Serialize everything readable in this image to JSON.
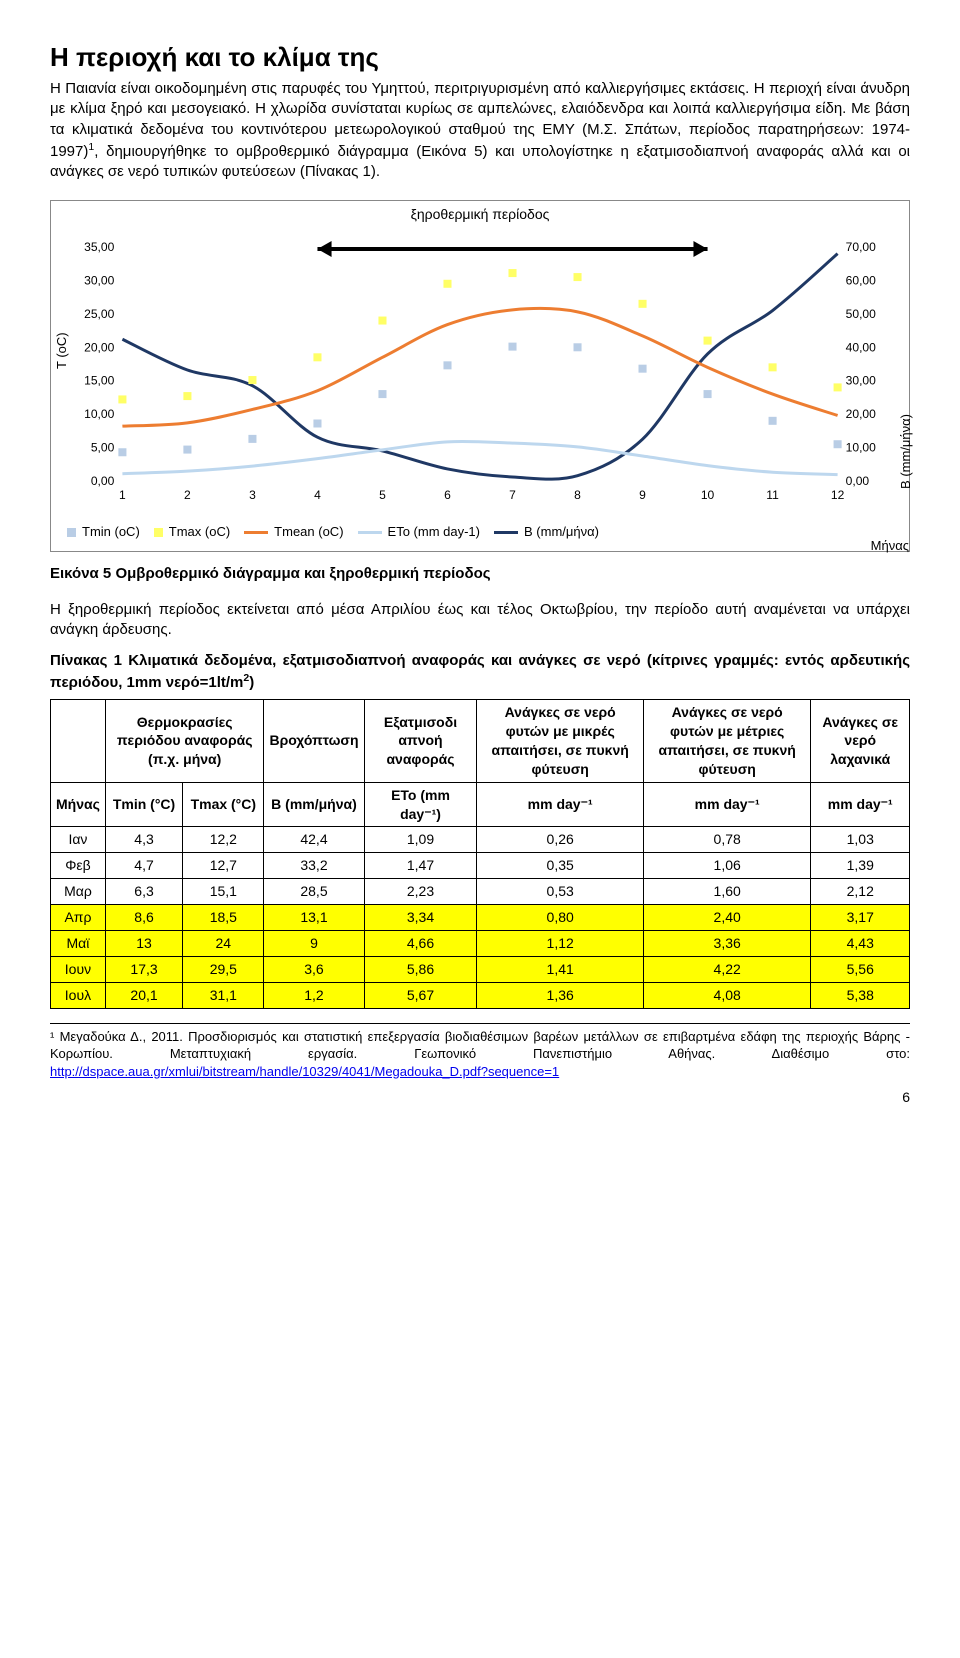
{
  "heading": "Η περιοχή και το κλίμα της",
  "intro": "Η Παιανία είναι οικοδομημένη στις παρυφές του Υμηττού, περιτριγυρισμένη από καλλιεργήσιμες εκτάσεις. Η περιοχή είναι άνυδρη με κλίμα ξηρό και μεσογειακό. Η χλωρίδα συνίσταται κυρίως σε αμπελώνες, ελαιόδενδρα και λοιπά καλλιεργήσιμα είδη. Με βάση τα κλιματικά δεδομένα του κοντινότερου μετεωρολογικού σταθμού της ΕΜΥ (Μ.Σ. Σπάτων, περίοδος παρατηρήσεων: 1974-1997)",
  "intro_cont": ", δημιουργήθηκε το ομβροθερμικό διάγραμμα (Εικόνα 5) και υπολογίστηκε η εξατμισοδιαπνοή αναφοράς αλλά και οι ανάγκες σε νερό τυπικών φυτεύσεων (Πίνακας 1).",
  "chart": {
    "period_label": "ξηροθερμική περίοδος",
    "y_left_label": "Τ (oC)",
    "y_right_label": "Β (mm/μήνα)",
    "x_axis_label": "Μήνας",
    "y_left_ticks": [
      "0,00",
      "5,00",
      "10,00",
      "15,00",
      "20,00",
      "25,00",
      "30,00",
      "35,00"
    ],
    "y_right_ticks": [
      "0,00",
      "10,00",
      "20,00",
      "30,00",
      "40,00",
      "50,00",
      "60,00",
      "70,00"
    ],
    "x_ticks": [
      "1",
      "2",
      "3",
      "4",
      "5",
      "6",
      "7",
      "8",
      "9",
      "10",
      "11",
      "12"
    ],
    "legend": {
      "tmin": {
        "label": "Tmin (oC)",
        "color": "#b9cde5"
      },
      "tmax": {
        "label": "Tmax (oC)",
        "color": "#ffff66"
      },
      "tmean": {
        "label": "Tmean (oC)",
        "color": "#ed7d31"
      },
      "eto": {
        "label": "ETo (mm day-1)",
        "color": "#bdd7ee"
      },
      "b": {
        "label": "Β (mm/μήνα)",
        "color": "#1f3864"
      }
    },
    "series": {
      "tmean": [
        8.2,
        8.7,
        10.7,
        13.5,
        18.5,
        23.4,
        25.6,
        25.3,
        21.7,
        17.0,
        13.0,
        9.8
      ],
      "eto": [
        1.09,
        1.47,
        2.23,
        3.34,
        4.66,
        5.86,
        5.67,
        5.1,
        3.74,
        2.3,
        1.31,
        0.96
      ],
      "b": [
        42.4,
        33.2,
        28.5,
        13.1,
        9.0,
        3.6,
        1.2,
        1.6,
        12.5,
        38.0,
        51.0,
        68.0
      ]
    },
    "scatter": {
      "tmin": [
        4.3,
        4.7,
        6.3,
        8.6,
        13.0,
        17.3,
        20.1,
        20.0,
        16.8,
        13.0,
        9.0,
        5.5
      ],
      "tmax": [
        12.2,
        12.7,
        15.1,
        18.5,
        24.0,
        29.5,
        31.1,
        30.5,
        26.5,
        21.0,
        17.0,
        14.0
      ]
    },
    "y_left_max": 35,
    "y_right_max": 70
  },
  "fig_caption": "Εικόνα 5 Ομβροθερμικό διάγραμμα και ξηροθερμική περίοδος",
  "mid_para": "Η ξηροθερμική περίοδος εκτείνεται από μέσα Απριλίου έως και τέλος Οκτωβρίου, την περίοδο αυτή αναμένεται να υπάρχει ανάγκη άρδευσης.",
  "table_caption_a": "Πίνακας 1 Κλιματικά δεδομένα, εξατμισοδιαπνοή αναφοράς και ανάγκες σε νερό (κίτρινες γραμμές: εντός αρδευτικής περιόδου, 1mm νερό=1lt/m",
  "table_caption_b": ")",
  "table": {
    "head1": [
      "",
      "Θερμοκρασίες περιόδου αναφοράς (π.χ. μήνα)",
      "Βροχόπτωση",
      "Εξατμισοδι απνοή αναφοράς",
      "Ανάγκες σε νερό φυτών με μικρές απαιτήσει, σε πυκνή φύτευση",
      "Ανάγκες σε νερό φυτών με μέτριες απαιτήσει, σε πυκνή φύτευση",
      "Ανάγκες σε νερό λαχανικά"
    ],
    "head2": [
      "Μήνας",
      "Tmin (°C)",
      "Tmax (°C)",
      "Β (mm/μήνα)",
      "ETo (mm day⁻¹)",
      "mm day⁻¹",
      "mm day⁻¹",
      "mm day⁻¹"
    ],
    "rows": [
      {
        "hl": false,
        "c": [
          "Ιαν",
          "4,3",
          "12,2",
          "42,4",
          "1,09",
          "0,26",
          "0,78",
          "1,03"
        ]
      },
      {
        "hl": false,
        "c": [
          "Φεβ",
          "4,7",
          "12,7",
          "33,2",
          "1,47",
          "0,35",
          "1,06",
          "1,39"
        ]
      },
      {
        "hl": false,
        "c": [
          "Μαρ",
          "6,3",
          "15,1",
          "28,5",
          "2,23",
          "0,53",
          "1,60",
          "2,12"
        ]
      },
      {
        "hl": true,
        "c": [
          "Απρ",
          "8,6",
          "18,5",
          "13,1",
          "3,34",
          "0,80",
          "2,40",
          "3,17"
        ]
      },
      {
        "hl": true,
        "c": [
          "Μαϊ",
          "13",
          "24",
          "9",
          "4,66",
          "1,12",
          "3,36",
          "4,43"
        ]
      },
      {
        "hl": true,
        "c": [
          "Ιουν",
          "17,3",
          "29,5",
          "3,6",
          "5,86",
          "1,41",
          "4,22",
          "5,56"
        ]
      },
      {
        "hl": true,
        "c": [
          "Ιουλ",
          "20,1",
          "31,1",
          "1,2",
          "5,67",
          "1,36",
          "4,08",
          "5,38"
        ]
      }
    ]
  },
  "footnote_a": "¹ Μεγαδούκα Δ., 2011. Προσδιορισμός και στατιστική επεξεργασία βιοδιαθέσιμων βαρέων μετάλλων σε επιβαρτμένα εδάφη της περιοχής Βάρης - Κορωπίου. Μεταπτυχιακή εργασία. Γεωπονικό Πανεπιστήμιο Αθήνας. Διαθέσιμο στο: ",
  "footnote_link": "http://dspace.aua.gr/xmlui/bitstream/handle/10329/4041/Megadouka_D.pdf?sequence=1",
  "page_num": "6"
}
